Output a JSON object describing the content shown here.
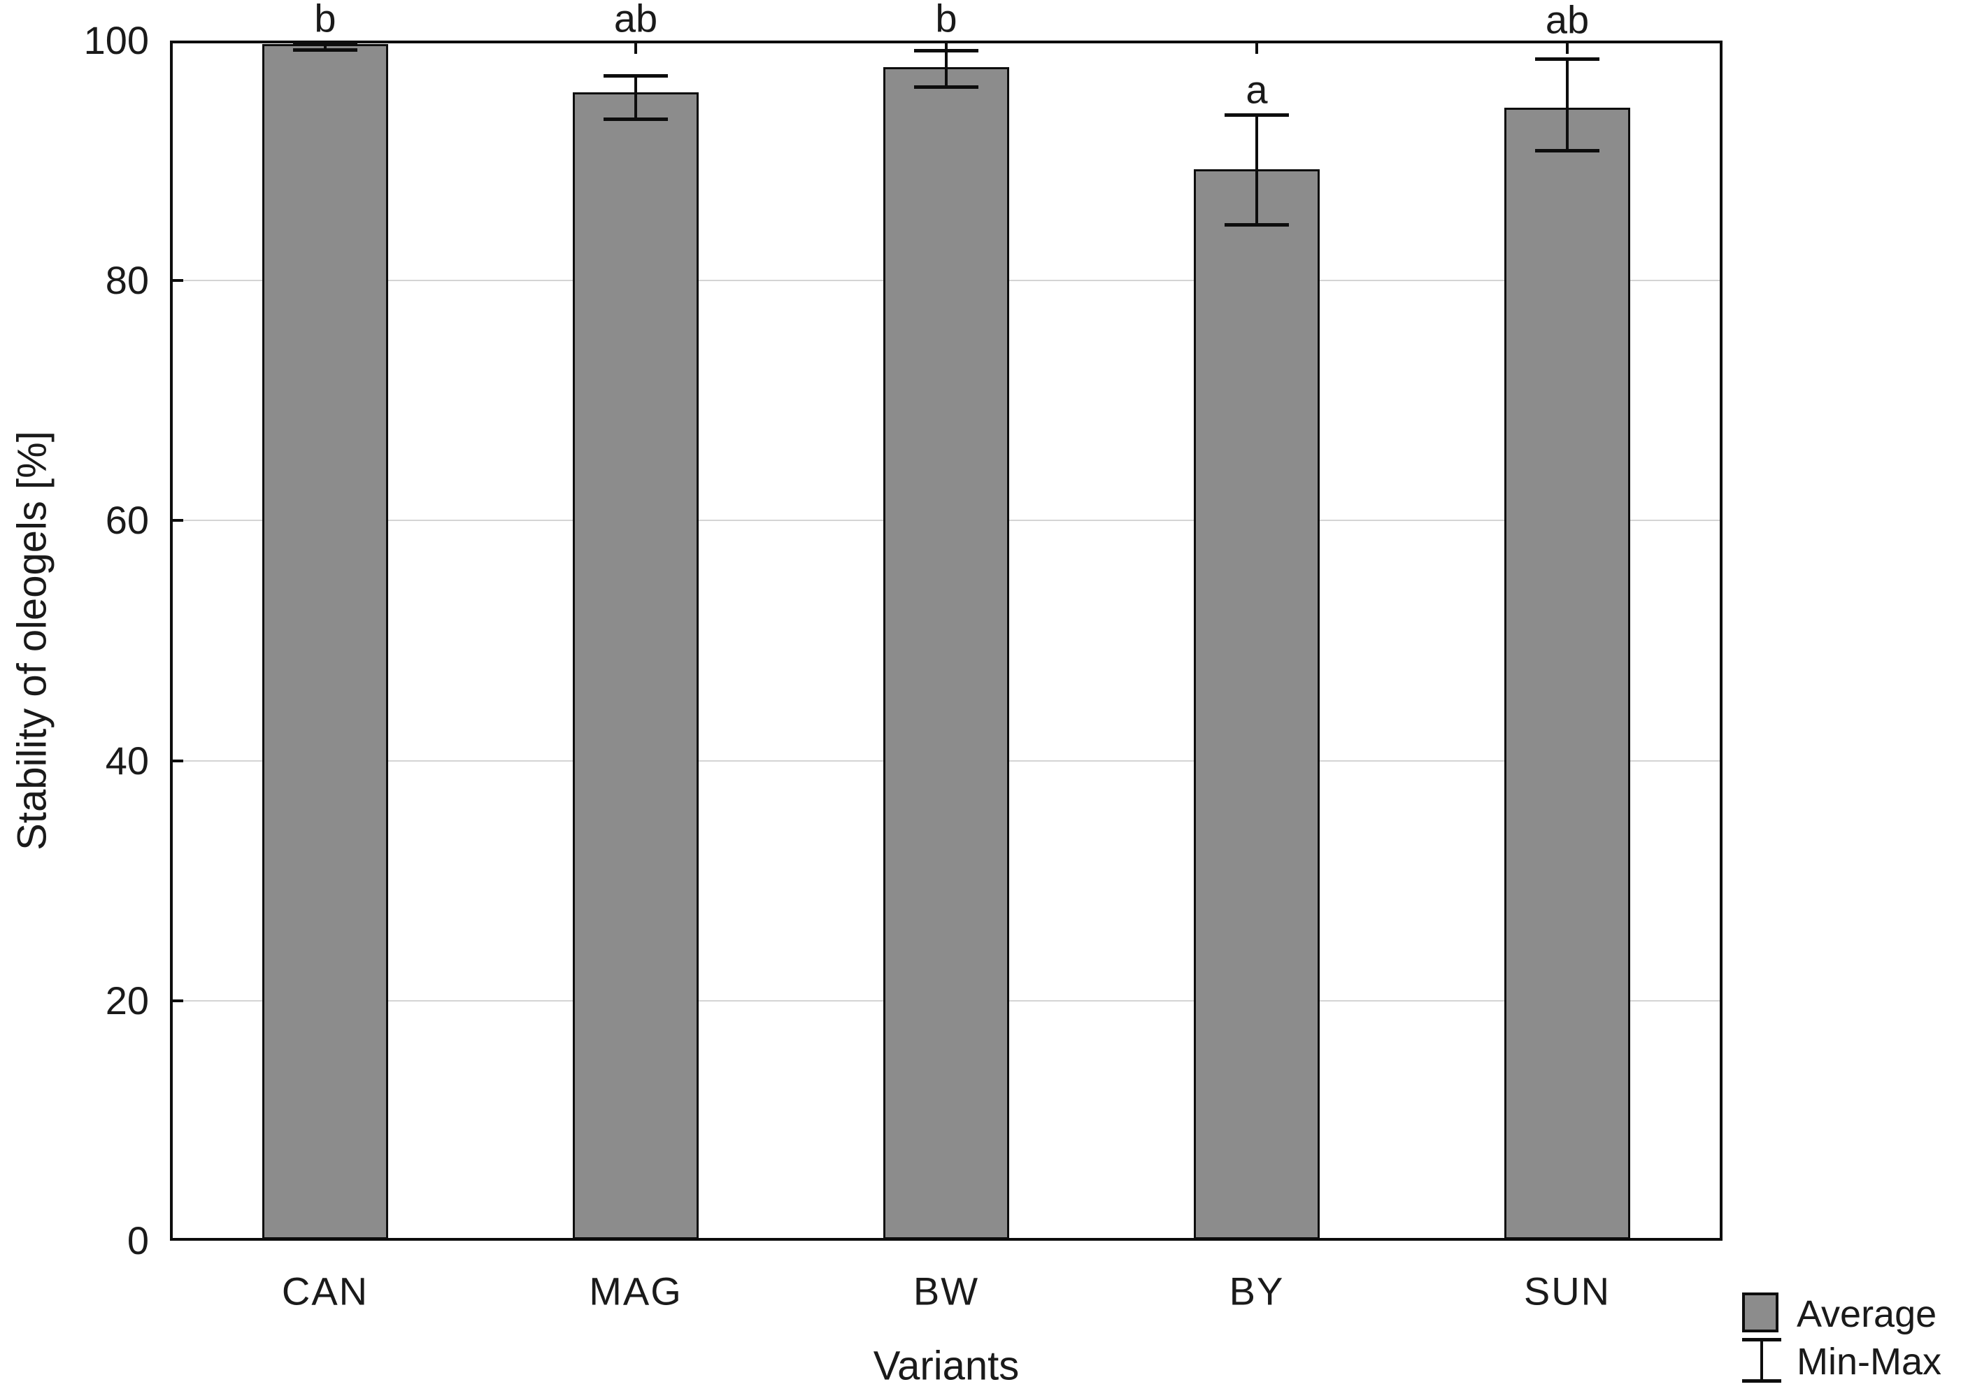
{
  "chart_data": {
    "type": "bar",
    "title": "",
    "xlabel": "Variants",
    "ylabel": "Stability of oleogels [%]",
    "ylim": [
      0,
      100
    ],
    "yticks": [
      0,
      20,
      40,
      60,
      80,
      100
    ],
    "grid": "horizontal",
    "categories": [
      "CAN",
      "MAG",
      "BW",
      "BY",
      "SUN"
    ],
    "series": [
      {
        "name": "Average",
        "values": [
          99.7,
          95.7,
          97.8,
          89.3,
          94.4
        ]
      }
    ],
    "error_bars": {
      "type": "min-max",
      "min": [
        99.2,
        93.4,
        96.1,
        84.6,
        90.8
      ],
      "max": [
        99.9,
        97.1,
        99.2,
        93.8,
        98.5
      ]
    },
    "significance_letters": [
      "b",
      "ab",
      "b",
      "a",
      "ab"
    ],
    "legend": {
      "position": "bottom-right",
      "items": [
        {
          "label": "Average",
          "marker": "filled-box"
        },
        {
          "label": "Min-Max",
          "marker": "error-bar"
        }
      ]
    },
    "colors": {
      "bar_fill": "#8c8c8c",
      "bar_border": "#0d0d0d",
      "gridline": "#d4d4d4",
      "error_bar": "#0d0d0d",
      "background": "#ffffff"
    }
  }
}
